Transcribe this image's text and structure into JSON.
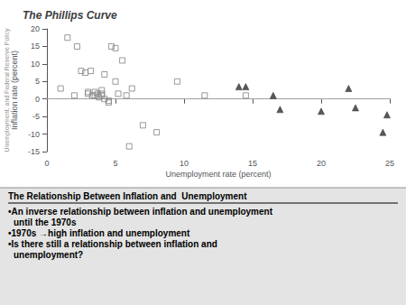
{
  "chart_data": {
    "type": "scatter",
    "title": "The Phillips Curve",
    "xlabel": "Unemployment rate (percent)",
    "ylabel": "Inflation rate (percent)",
    "xlim": [
      0,
      25
    ],
    "ylim": [
      -15,
      20
    ],
    "xticks": [
      0,
      5,
      10,
      15,
      20,
      25
    ],
    "yticks": [
      -15,
      -10,
      -5,
      0,
      5,
      10,
      15,
      20
    ],
    "grid": false,
    "hline": 0,
    "series": [
      {
        "color": "#808080",
        "marker": "open_square",
        "x": [
          1.0,
          1.5,
          2.0,
          2.2,
          2.5,
          2.8,
          3.0,
          3.0,
          3.2,
          3.3,
          3.5,
          3.5,
          3.7,
          3.8,
          4.0,
          4.0,
          4.0,
          4.2,
          4.2,
          4.5,
          4.5,
          4.7,
          5.0,
          5.0,
          5.2,
          5.5,
          5.8,
          6.0,
          6.2,
          7.0,
          8.0,
          9.5,
          11.5,
          14.5
        ],
        "values": [
          3.0,
          17.5,
          1.0,
          15.0,
          8.0,
          7.5,
          1.5,
          2.0,
          8.0,
          1.0,
          2.0,
          1.0,
          1.5,
          0.5,
          1.0,
          1.5,
          2.5,
          7.0,
          0.0,
          -0.5,
          -1.0,
          15.0,
          5.0,
          14.5,
          1.5,
          11.0,
          1.0,
          -13.5,
          3.0,
          -7.5,
          -9.5,
          5.0,
          1.0,
          1.0
        ]
      },
      {
        "color": "#303030",
        "marker": "triangle",
        "x": [
          14.0,
          14.5,
          16.5,
          17.0,
          20.0,
          22.0,
          22.5,
          24.5,
          24.8
        ],
        "values": [
          3.5,
          3.5,
          1.0,
          -3.0,
          -3.5,
          3.0,
          -2.5,
          -9.5,
          -4.5
        ]
      }
    ],
    "annotations": {
      "sidebar": "Unemployment, and Federal Reserve Policy",
      "heading": "The Relationship Between Inflation and  Unemployment",
      "lines": [
        "•An inverse relationship between inflation and unemployment",
        "until the 1970s",
        "•1970s →high inflation and unemployment",
        "•Is there still a relationship between inflation and",
        "unemployment?"
      ]
    }
  }
}
